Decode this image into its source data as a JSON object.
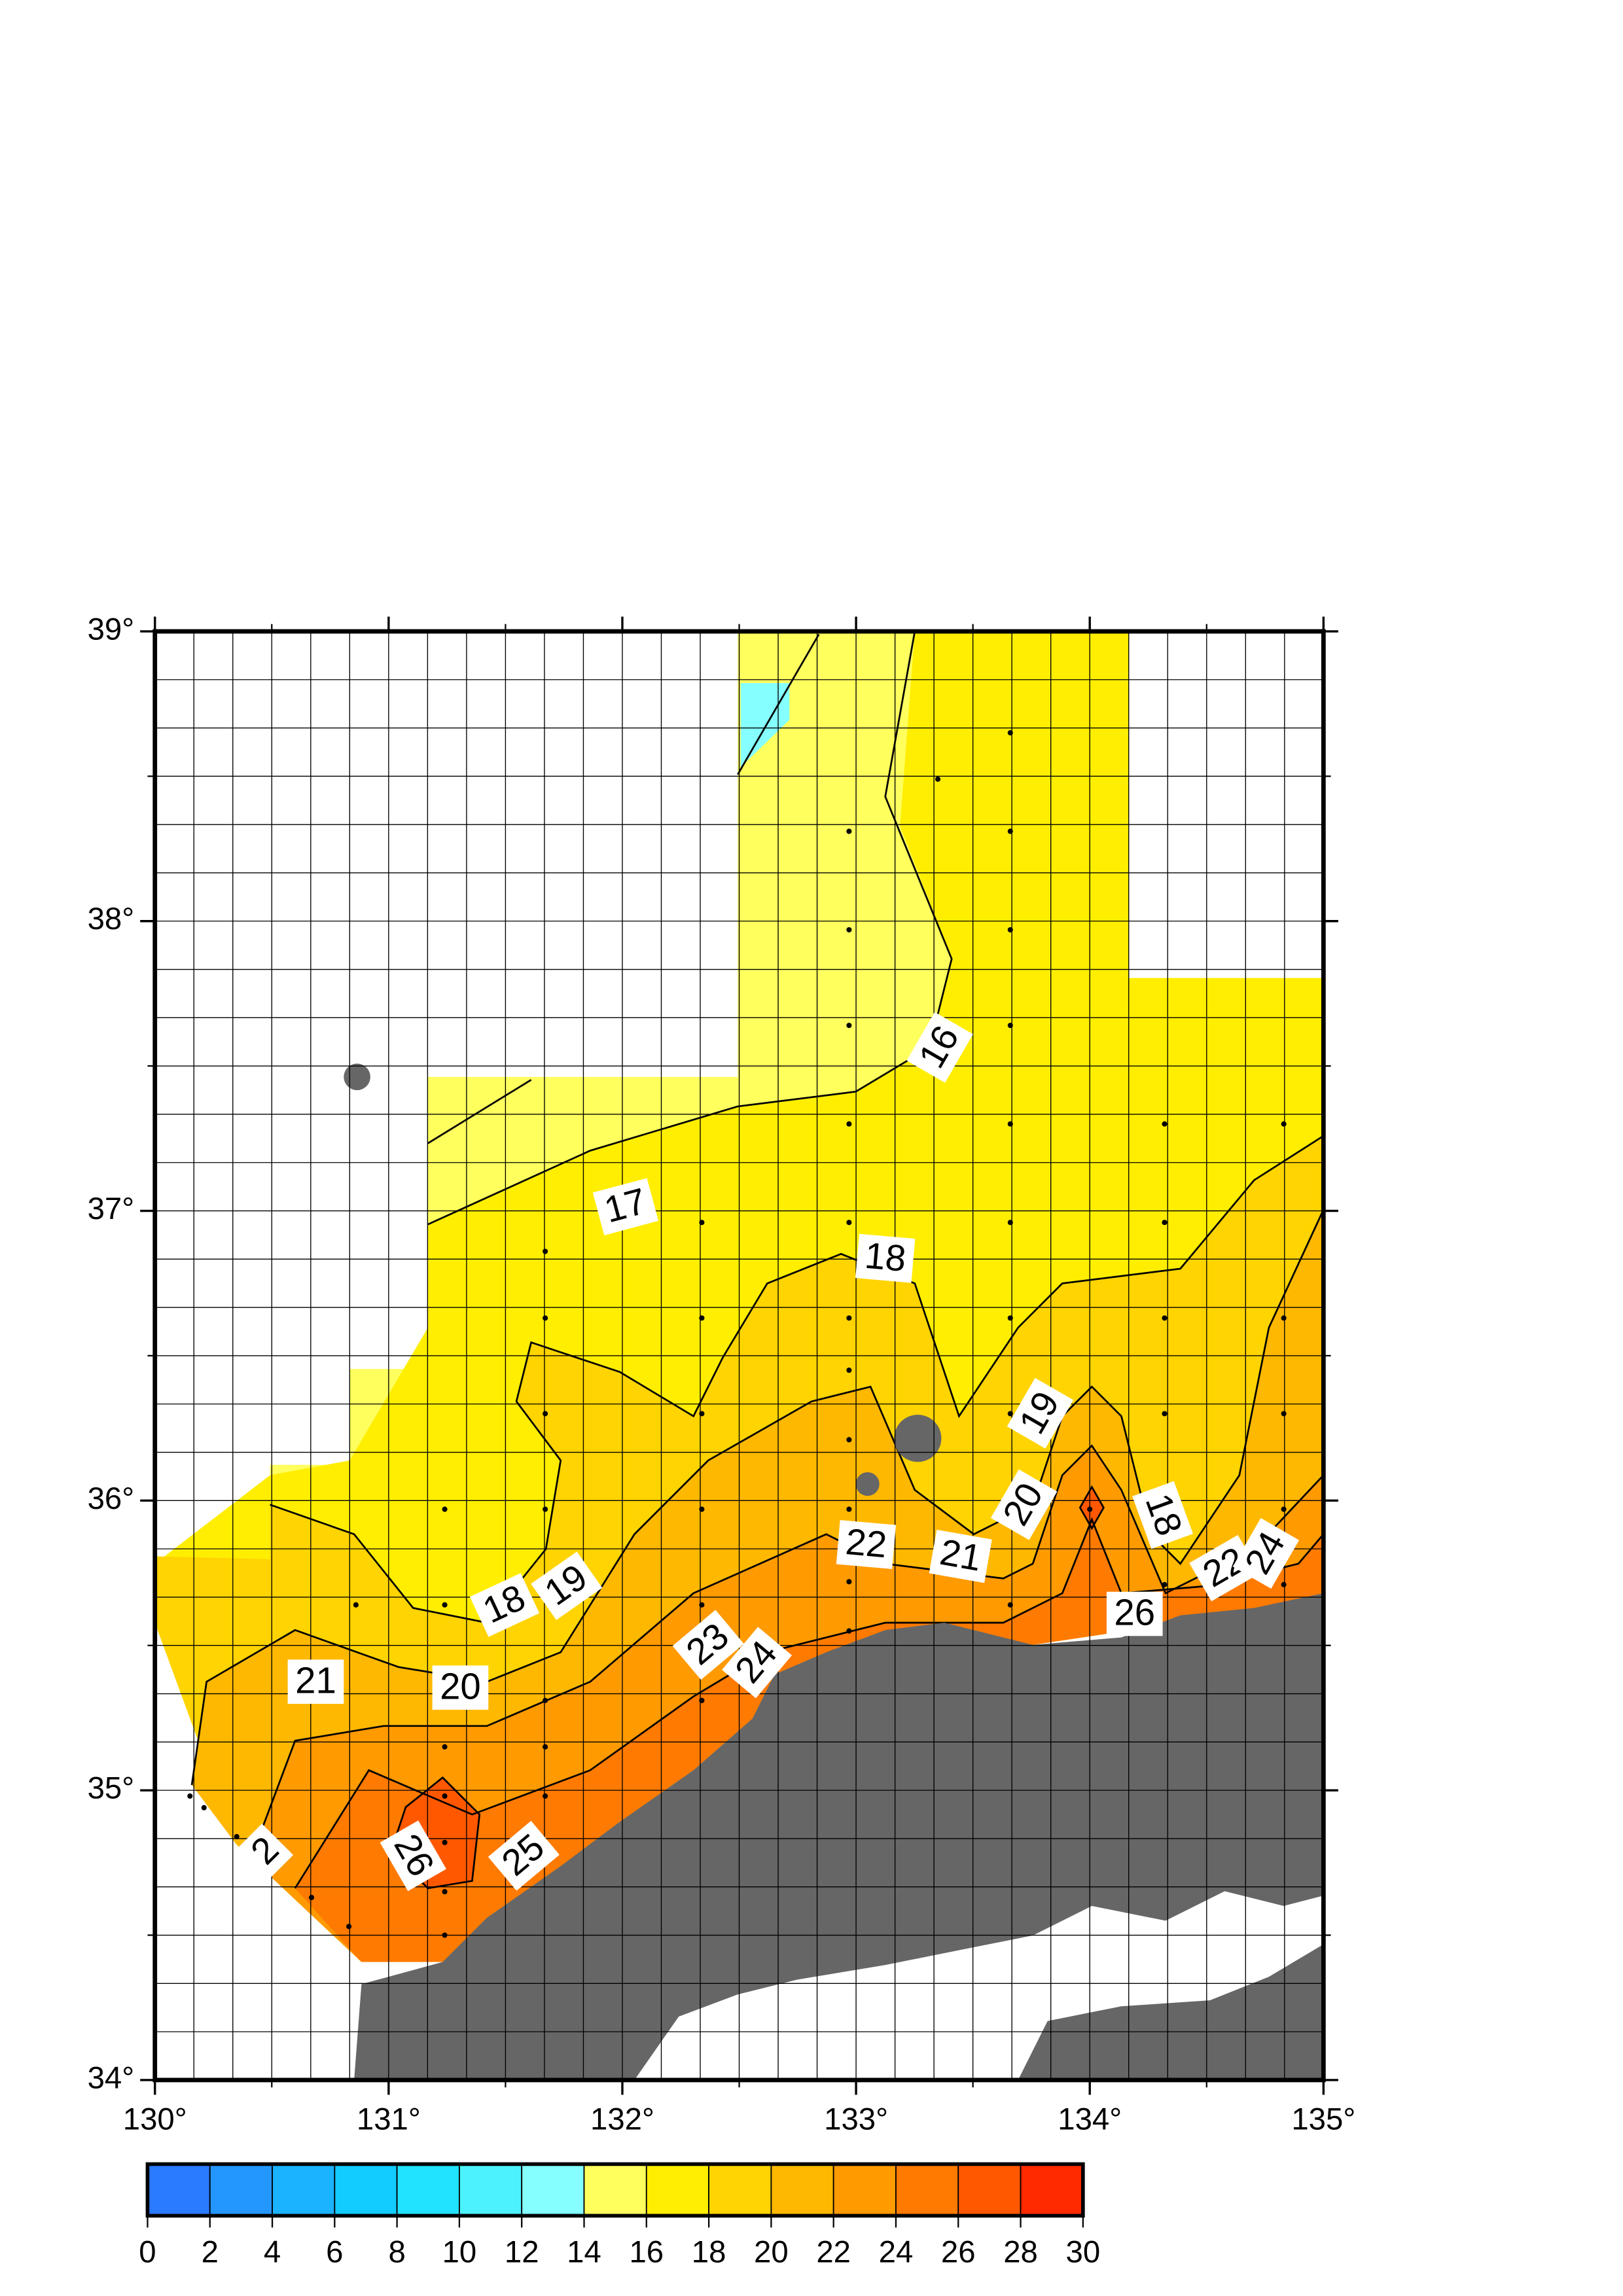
{
  "map": {
    "xlim": [
      130,
      135
    ],
    "ylim": [
      34,
      39
    ],
    "xticks": [
      {
        "value": 130,
        "label": "130°"
      },
      {
        "value": 131,
        "label": "131°"
      },
      {
        "value": 132,
        "label": "132°"
      },
      {
        "value": 133,
        "label": "133°"
      },
      {
        "value": 134,
        "label": "134°"
      },
      {
        "value": 135,
        "label": "135°"
      }
    ],
    "yticks": [
      {
        "value": 34,
        "label": "34°"
      },
      {
        "value": 35,
        "label": "35°"
      },
      {
        "value": 36,
        "label": "36°"
      },
      {
        "value": 37,
        "label": "37°"
      },
      {
        "value": 38,
        "label": "38°"
      },
      {
        "value": 39,
        "label": "39°"
      }
    ],
    "grid": true,
    "land_color": "#666666",
    "stations": {
      "lon": [
        133.66,
        133.35,
        132.97,
        133.66,
        132.97,
        133.66,
        132.97,
        133.66,
        132.97,
        133.66,
        134.32,
        134.83,
        132.34,
        132.97,
        133.66,
        134.32,
        131.67,
        131.67,
        132.34,
        132.97,
        133.66,
        134.32,
        134.83,
        132.97,
        131.67,
        132.34,
        132.97,
        133.66,
        134.32,
        134.83,
        131.24,
        131.67,
        132.34,
        132.97,
        134.0,
        134.32,
        134.83,
        130.86,
        131.24,
        132.34,
        132.97,
        133.66,
        134.32,
        134.83,
        132.97,
        131.24,
        131.67,
        132.34,
        131.67,
        130.15,
        130.21,
        130.35,
        131.24,
        131.67,
        130.67,
        130.83,
        131.24,
        131.24,
        131.24
      ],
      "lat": [
        38.65,
        38.49,
        38.31,
        38.31,
        37.97,
        37.97,
        37.64,
        37.64,
        37.3,
        37.3,
        37.3,
        37.3,
        36.96,
        36.96,
        36.96,
        36.96,
        36.86,
        36.63,
        36.63,
        36.63,
        36.63,
        36.63,
        36.63,
        36.45,
        36.3,
        36.3,
        36.21,
        36.3,
        36.3,
        36.3,
        35.97,
        35.97,
        35.97,
        35.97,
        35.97,
        35.97,
        35.97,
        35.64,
        35.64,
        35.64,
        35.72,
        35.64,
        35.71,
        35.71,
        35.55,
        35.15,
        35.31,
        35.31,
        35.15,
        34.98,
        34.94,
        34.84,
        34.98,
        34.98,
        34.63,
        34.53,
        34.82,
        34.65,
        34.5
      ]
    },
    "contour_labels": [
      16,
      17,
      18,
      18,
      19,
      21,
      20,
      2,
      26,
      25,
      23,
      24,
      22,
      21,
      20,
      19,
      18,
      26,
      22,
      24
    ],
    "colorbar": {
      "ticks": [
        0,
        2,
        4,
        6,
        8,
        10,
        12,
        14,
        16,
        18,
        20,
        22,
        24,
        26,
        28,
        30
      ],
      "colors": [
        "#2a7bff",
        "#2497ff",
        "#1bb3ff",
        "#12cbff",
        "#22e3ff",
        "#4cf3ff",
        "#85ffff",
        "#ffff5e",
        "#ffee00",
        "#ffd400",
        "#ffb800",
        "#ff9a00",
        "#ff7a00",
        "#ff5800",
        "#ff2a00"
      ]
    }
  }
}
